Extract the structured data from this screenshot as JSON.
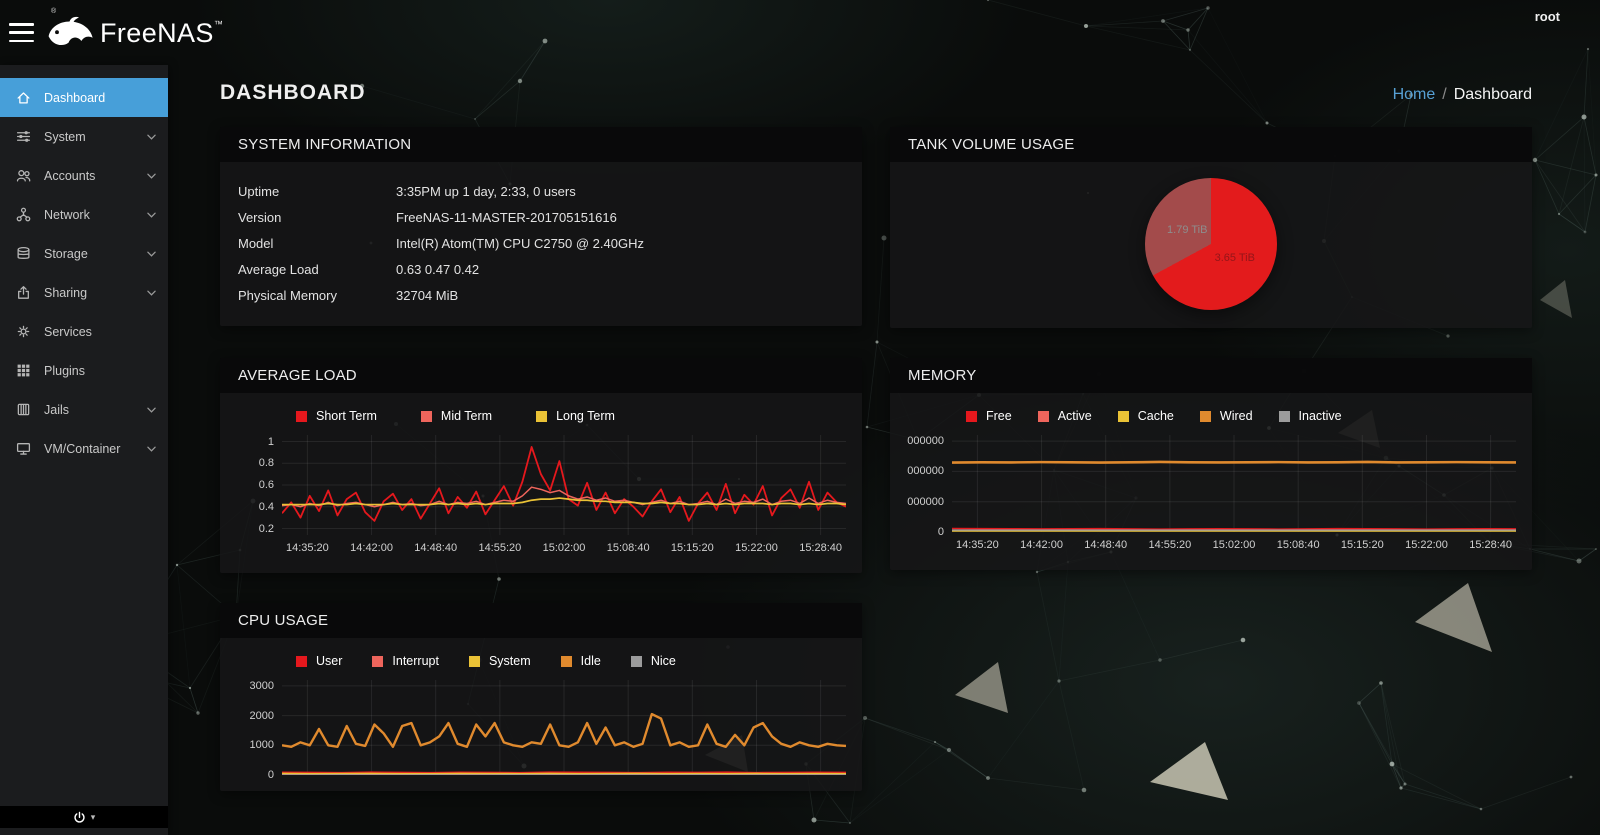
{
  "header": {
    "brand": "FreeNAS",
    "trademark": "™",
    "registered": "®",
    "user": "root"
  },
  "sidebar": {
    "items": [
      {
        "label": "Dashboard",
        "icon": "home-icon",
        "active": true,
        "expandable": false
      },
      {
        "label": "System",
        "icon": "sliders-icon",
        "active": false,
        "expandable": true
      },
      {
        "label": "Accounts",
        "icon": "users-icon",
        "active": false,
        "expandable": true
      },
      {
        "label": "Network",
        "icon": "network-icon",
        "active": false,
        "expandable": true
      },
      {
        "label": "Storage",
        "icon": "storage-icon",
        "active": false,
        "expandable": true
      },
      {
        "label": "Sharing",
        "icon": "share-icon",
        "active": false,
        "expandable": true
      },
      {
        "label": "Services",
        "icon": "gear-icon",
        "active": false,
        "expandable": false
      },
      {
        "label": "Plugins",
        "icon": "grid-icon",
        "active": false,
        "expandable": false
      },
      {
        "label": "Jails",
        "icon": "jail-icon",
        "active": false,
        "expandable": true
      },
      {
        "label": "VM/Container",
        "icon": "vm-icon",
        "active": false,
        "expandable": true
      }
    ],
    "power_menu": {
      "icon": "power-icon",
      "caret": "▾"
    }
  },
  "page": {
    "title": "DASHBOARD",
    "breadcrumb": {
      "home": "Home",
      "separator": "/",
      "current": "Dashboard"
    }
  },
  "cards": {
    "system_information": {
      "title": "SYSTEM INFORMATION",
      "rows": [
        {
          "label": "Uptime",
          "value": "3:35PM up 1 day, 2:33, 0 users"
        },
        {
          "label": "Version",
          "value": "FreeNAS-11-MASTER-201705151616"
        },
        {
          "label": "Model",
          "value": "Intel(R) Atom(TM) CPU C2750 @ 2.40GHz"
        },
        {
          "label": "Average Load",
          "value": "0.63 0.47 0.42"
        },
        {
          "label": "Physical Memory",
          "value": "32704 MiB"
        }
      ]
    },
    "tank_volume": {
      "title": "TANK VOLUME USAGE"
    },
    "average_load": {
      "title": "AVERAGE LOAD"
    },
    "memory": {
      "title": "MEMORY"
    },
    "cpu_usage": {
      "title": "CPU USAGE"
    }
  },
  "chart_data": [
    {
      "id": "tank-volume-pie",
      "type": "pie",
      "title": "TANK VOLUME USAGE",
      "slices": [
        {
          "label": "3.65 TiB",
          "value": 3.65,
          "color": "#e31b1c",
          "label_color": "#941519"
        },
        {
          "label": "1.79 TiB",
          "value": 1.79,
          "color": "#a34b4b",
          "label_color": "#8d8d8d"
        }
      ]
    },
    {
      "id": "average-load",
      "type": "line",
      "title": "AVERAGE LOAD",
      "categories": [
        "14:35:20",
        "14:42:00",
        "14:48:40",
        "14:55:20",
        "15:02:00",
        "15:08:40",
        "15:15:20",
        "15:22:00",
        "15:28:40"
      ],
      "ylim": [
        0.14,
        1.06
      ],
      "yticks": [
        {
          "value": 1,
          "display": "1"
        },
        {
          "value": 0.8,
          "display": "0.8"
        },
        {
          "value": 0.6,
          "display": "0.6"
        },
        {
          "value": 0.4,
          "display": "0.4"
        },
        {
          "value": 0.2,
          "display": "0.2"
        }
      ],
      "series": [
        {
          "name": "Short Term",
          "color": "#e5181d",
          "width": 1.8,
          "values": [
            0.34,
            0.44,
            0.3,
            0.5,
            0.36,
            0.55,
            0.32,
            0.47,
            0.53,
            0.35,
            0.27,
            0.45,
            0.52,
            0.37,
            0.47,
            0.29,
            0.43,
            0.57,
            0.34,
            0.49,
            0.39,
            0.54,
            0.33,
            0.46,
            0.59,
            0.41,
            0.63,
            0.95,
            0.7,
            0.55,
            0.82,
            0.47,
            0.41,
            0.62,
            0.37,
            0.53,
            0.34,
            0.47,
            0.4,
            0.31,
            0.45,
            0.56,
            0.35,
            0.49,
            0.27,
            0.43,
            0.53,
            0.37,
            0.61,
            0.34,
            0.51,
            0.42,
            0.59,
            0.32,
            0.48,
            0.56,
            0.39,
            0.63,
            0.37,
            0.53,
            0.44,
            0.4
          ]
        },
        {
          "name": "Mid Term",
          "color": "#ee655c",
          "width": 1.5,
          "values": [
            0.41,
            0.42,
            0.4,
            0.43,
            0.41,
            0.44,
            0.41,
            0.43,
            0.44,
            0.42,
            0.4,
            0.42,
            0.44,
            0.42,
            0.43,
            0.41,
            0.42,
            0.45,
            0.42,
            0.44,
            0.43,
            0.45,
            0.42,
            0.44,
            0.46,
            0.45,
            0.5,
            0.58,
            0.56,
            0.53,
            0.55,
            0.5,
            0.47,
            0.49,
            0.46,
            0.48,
            0.45,
            0.46,
            0.44,
            0.42,
            0.44,
            0.46,
            0.43,
            0.45,
            0.42,
            0.43,
            0.45,
            0.42,
            0.47,
            0.43,
            0.45,
            0.44,
            0.47,
            0.42,
            0.45,
            0.46,
            0.43,
            0.48,
            0.43,
            0.46,
            0.44,
            0.43
          ]
        },
        {
          "name": "Long Term",
          "color": "#eac236",
          "width": 1.7,
          "values": [
            0.42,
            0.42,
            0.42,
            0.42,
            0.42,
            0.43,
            0.42,
            0.42,
            0.43,
            0.42,
            0.42,
            0.42,
            0.43,
            0.42,
            0.42,
            0.42,
            0.42,
            0.43,
            0.42,
            0.43,
            0.42,
            0.43,
            0.42,
            0.43,
            0.43,
            0.43,
            0.44,
            0.46,
            0.47,
            0.47,
            0.48,
            0.47,
            0.46,
            0.46,
            0.45,
            0.45,
            0.44,
            0.44,
            0.44,
            0.43,
            0.43,
            0.44,
            0.43,
            0.43,
            0.42,
            0.42,
            0.43,
            0.42,
            0.43,
            0.42,
            0.43,
            0.43,
            0.43,
            0.42,
            0.43,
            0.43,
            0.42,
            0.43,
            0.42,
            0.43,
            0.43,
            0.42
          ]
        }
      ]
    },
    {
      "id": "memory",
      "type": "line",
      "title": "MEMORY",
      "categories": [
        "14:35:20",
        "14:42:00",
        "14:48:40",
        "14:55:20",
        "15:02:00",
        "15:08:40",
        "15:15:20",
        "15:22:00",
        "15:28:40"
      ],
      "ylim": [
        0,
        32000000
      ],
      "yticks": [
        {
          "value": 30000000,
          "display": "000000"
        },
        {
          "value": 20000000,
          "display": "000000"
        },
        {
          "value": 10000000,
          "display": "000000"
        },
        {
          "value": 0,
          "display": "0"
        }
      ],
      "series": [
        {
          "name": "Free",
          "color": "#e5181d",
          "width": 1.6,
          "values": [
            1150000,
            1100000,
            1050000,
            1000000,
            1050000,
            1100000,
            1000000,
            950000,
            1000000,
            1050000,
            1000000,
            950000,
            1000000,
            1100000,
            1050000,
            1000000,
            950000,
            1000000,
            1050000,
            1000000
          ]
        },
        {
          "name": "Active",
          "color": "#ee655c",
          "width": 1.3,
          "values": [
            520000,
            510000,
            515000,
            520000,
            510000,
            515000,
            520000,
            510000,
            515000,
            520000,
            515000,
            510000,
            520000,
            515000,
            510000,
            520000,
            515000,
            510000,
            515000,
            520000
          ]
        },
        {
          "name": "Cache",
          "color": "#eac236",
          "width": 1.3,
          "values": [
            300000,
            302000,
            298000,
            300000,
            301000,
            299000,
            300000,
            302000,
            298000,
            300000,
            300000,
            301000,
            299000,
            300000,
            302000,
            298000,
            300000,
            301000,
            299000,
            300000
          ]
        },
        {
          "name": "Wired",
          "color": "#e08a2e",
          "width": 2.6,
          "values": [
            22900000,
            23000000,
            22950000,
            23050000,
            23000000,
            22900000,
            23000000,
            23100000,
            23000000,
            22950000,
            23000000,
            23050000,
            22950000,
            23000000,
            23100000,
            22950000,
            23000000,
            23050000,
            23000000,
            22950000
          ]
        },
        {
          "name": "Inactive",
          "color": "#9c9c9c",
          "width": 1.3,
          "values": [
            640000,
            635000,
            640000,
            645000,
            640000,
            635000,
            640000,
            645000,
            640000,
            635000,
            640000,
            645000,
            640000,
            635000,
            640000,
            645000,
            640000,
            635000,
            640000,
            640000
          ]
        }
      ]
    },
    {
      "id": "cpu-usage",
      "type": "line",
      "title": "CPU USAGE",
      "categories": [],
      "ylim": [
        0,
        3200
      ],
      "yticks": [
        {
          "value": 3000,
          "display": "3000"
        },
        {
          "value": 2000,
          "display": "2000"
        },
        {
          "value": 1000,
          "display": "1000"
        },
        {
          "value": 0,
          "display": "0"
        }
      ],
      "series": [
        {
          "name": "User",
          "color": "#e5181d",
          "width": 1.6,
          "values": [
            90,
            85,
            80,
            95,
            85,
            80,
            90,
            85,
            80,
            95,
            90,
            85,
            80,
            90,
            85,
            95,
            80,
            85,
            90,
            85
          ]
        },
        {
          "name": "Interrupt",
          "color": "#ee655c",
          "width": 1.3,
          "values": [
            15,
            12,
            15,
            14,
            15,
            12,
            15,
            14,
            12,
            15,
            14,
            15,
            12,
            15,
            14,
            15,
            12,
            14,
            15,
            12
          ]
        },
        {
          "name": "System",
          "color": "#eac236",
          "width": 1.4,
          "values": [
            55,
            50,
            52,
            55,
            50,
            48,
            55,
            52,
            50,
            55,
            48,
            52,
            55,
            50,
            52,
            48,
            55,
            50,
            52,
            50
          ]
        },
        {
          "name": "Idle",
          "color": "#e08a2e",
          "width": 2.4,
          "values": [
            1000,
            950,
            1100,
            1000,
            1550,
            1000,
            950,
            1650,
            1050,
            980,
            1700,
            1400,
            950,
            1650,
            1750,
            1000,
            1100,
            1300,
            1750,
            1050,
            950,
            1700,
            1300,
            1750,
            1100,
            1000,
            950,
            1100,
            1050,
            1700,
            1000,
            950,
            1100,
            1750,
            1050,
            1600,
            1000,
            1100,
            950,
            1050,
            2050,
            1900,
            1000,
            1100,
            950,
            1000,
            1700,
            1050,
            950,
            1350,
            1000,
            1600,
            1750,
            1300,
            1050,
            950,
            1100,
            1000,
            950,
            1050,
            1000,
            980
          ]
        },
        {
          "name": "Nice",
          "color": "#9c9c9c",
          "width": 1.3,
          "values": [
            5,
            5,
            6,
            5,
            5,
            6,
            5,
            5,
            6,
            5,
            5,
            6,
            5,
            5,
            6,
            5,
            5,
            6,
            5,
            5
          ]
        }
      ]
    }
  ]
}
